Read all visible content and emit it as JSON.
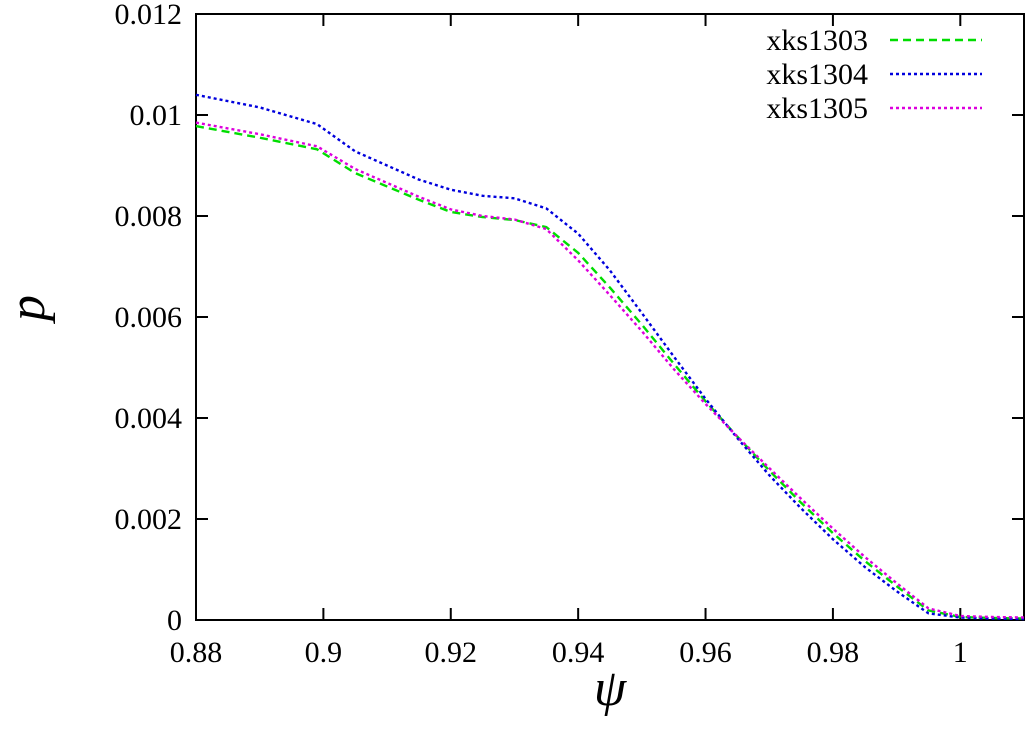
{
  "chart_data": {
    "type": "line",
    "title": "",
    "xlabel": "ψ",
    "ylabel": "p",
    "xlim": [
      0.88,
      1.01
    ],
    "ylim": [
      0,
      0.012
    ],
    "x_ticks": [
      0.88,
      0.9,
      0.92,
      0.94,
      0.96,
      0.98,
      1
    ],
    "x_tick_labels": [
      "0.88",
      "0.9",
      "0.92",
      "0.94",
      "0.96",
      "0.98",
      "1"
    ],
    "y_ticks": [
      0,
      0.002,
      0.004,
      0.006,
      0.008,
      0.01,
      0.012
    ],
    "y_tick_labels": [
      "0",
      "0.002",
      "0.004",
      "0.006",
      "0.008",
      "0.01",
      "0.012"
    ],
    "grid": false,
    "legend_position": "top-right",
    "series": [
      {
        "name": "xks1303",
        "color": "#00dd00",
        "dash": "dashed",
        "x": [
          0.88,
          0.89,
          0.899,
          0.905,
          0.915,
          0.92,
          0.925,
          0.93,
          0.935,
          0.94,
          0.945,
          0.95,
          0.955,
          0.96,
          0.965,
          0.97,
          0.975,
          0.98,
          0.985,
          0.99,
          0.995,
          1.0,
          1.005,
          1.01
        ],
        "y": [
          0.00978,
          0.00955,
          0.00932,
          0.00885,
          0.00832,
          0.00808,
          0.00798,
          0.00792,
          0.00778,
          0.00727,
          0.00658,
          0.00585,
          0.00508,
          0.00433,
          0.00363,
          0.00296,
          0.00232,
          0.00172,
          0.00117,
          0.00067,
          0.00019,
          6e-05,
          4e-05,
          3e-05
        ]
      },
      {
        "name": "xks1304",
        "color": "#0000dd",
        "dash": "dotted",
        "x": [
          0.88,
          0.89,
          0.899,
          0.905,
          0.915,
          0.92,
          0.925,
          0.93,
          0.935,
          0.94,
          0.945,
          0.95,
          0.955,
          0.96,
          0.965,
          0.97,
          0.975,
          0.98,
          0.985,
          0.99,
          0.995,
          1.0,
          1.005,
          1.01
        ],
        "y": [
          0.0104,
          0.01015,
          0.00982,
          0.00928,
          0.00872,
          0.00852,
          0.0084,
          0.00835,
          0.00815,
          0.00765,
          0.00692,
          0.00608,
          0.00522,
          0.00438,
          0.0036,
          0.00287,
          0.00221,
          0.0016,
          0.00105,
          0.00057,
          0.00013,
          5e-05,
          3e-05,
          2e-05
        ]
      },
      {
        "name": "xks1305",
        "color": "#dd00dd",
        "dash": "dotted",
        "x": [
          0.88,
          0.89,
          0.899,
          0.905,
          0.915,
          0.92,
          0.925,
          0.93,
          0.935,
          0.94,
          0.945,
          0.95,
          0.955,
          0.96,
          0.965,
          0.97,
          0.975,
          0.98,
          0.985,
          0.99,
          0.995,
          1.0,
          1.005,
          1.01
        ],
        "y": [
          0.00985,
          0.00962,
          0.00938,
          0.00893,
          0.00838,
          0.00813,
          0.008,
          0.00793,
          0.00774,
          0.00712,
          0.00643,
          0.00572,
          0.00497,
          0.00428,
          0.00363,
          0.00301,
          0.0024,
          0.00181,
          0.00125,
          0.00073,
          0.00023,
          8e-05,
          6e-05,
          5e-05
        ]
      }
    ]
  }
}
